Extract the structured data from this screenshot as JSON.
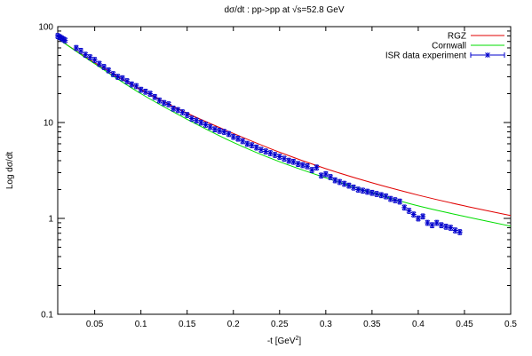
{
  "chart_data": {
    "type": "line",
    "title": "dσ/dt : pp->pp at √s=52.8 GeV",
    "xlabel": "-t [GeV",
    "xlabel_sup": "2",
    "xlabel_close": "]",
    "ylabel": "Log dσ/dt",
    "xlim": [
      0.01,
      0.5
    ],
    "ylim": [
      0.1,
      100
    ],
    "yscale": "log",
    "grid": false,
    "legend_position": "top-right",
    "x_ticks": [
      {
        "value": 0.05,
        "label": "0.05"
      },
      {
        "value": 0.1,
        "label": "0.1"
      },
      {
        "value": 0.15,
        "label": "0.15"
      },
      {
        "value": 0.2,
        "label": "0.2"
      },
      {
        "value": 0.25,
        "label": "0.25"
      },
      {
        "value": 0.3,
        "label": "0.3"
      },
      {
        "value": 0.35,
        "label": "0.35"
      },
      {
        "value": 0.4,
        "label": "0.4"
      },
      {
        "value": 0.45,
        "label": "0.45"
      },
      {
        "value": 0.5,
        "label": "0.5"
      }
    ],
    "y_ticks": [
      {
        "value": 0.1,
        "label": "0.1"
      },
      {
        "value": 1,
        "label": "1"
      },
      {
        "value": 10,
        "label": "10"
      },
      {
        "value": 100,
        "label": "100"
      }
    ],
    "series": [
      {
        "name": "RGZ",
        "style": "line",
        "color": "#e00000",
        "x": [
          0.01,
          0.05,
          0.1,
          0.15,
          0.2,
          0.25,
          0.3,
          0.35,
          0.4,
          0.45,
          0.5
        ],
        "y": [
          75,
          42,
          22,
          12.5,
          7.7,
          4.9,
          3.3,
          2.35,
          1.75,
          1.35,
          1.07
        ]
      },
      {
        "name": "Cornwall",
        "style": "line",
        "color": "#00dd00",
        "x": [
          0.01,
          0.05,
          0.1,
          0.15,
          0.2,
          0.25,
          0.3,
          0.35,
          0.4,
          0.45,
          0.5
        ],
        "y": [
          75,
          41,
          20,
          10.8,
          6.2,
          3.9,
          2.65,
          1.85,
          1.35,
          1.05,
          0.83
        ]
      },
      {
        "name": "ISR data experiment",
        "style": "points_errorbars",
        "color": "#0000cc",
        "error_fraction": 0.06,
        "x": [
          0.01,
          0.012,
          0.014,
          0.016,
          0.018,
          0.03,
          0.035,
          0.04,
          0.045,
          0.05,
          0.055,
          0.06,
          0.065,
          0.07,
          0.075,
          0.08,
          0.085,
          0.09,
          0.095,
          0.1,
          0.105,
          0.11,
          0.115,
          0.12,
          0.125,
          0.13,
          0.135,
          0.14,
          0.145,
          0.15,
          0.155,
          0.16,
          0.165,
          0.17,
          0.175,
          0.18,
          0.185,
          0.19,
          0.195,
          0.2,
          0.205,
          0.21,
          0.215,
          0.22,
          0.225,
          0.23,
          0.235,
          0.24,
          0.245,
          0.25,
          0.255,
          0.26,
          0.265,
          0.27,
          0.275,
          0.28,
          0.285,
          0.29,
          0.295,
          0.3,
          0.305,
          0.31,
          0.315,
          0.32,
          0.325,
          0.33,
          0.335,
          0.34,
          0.345,
          0.35,
          0.355,
          0.36,
          0.365,
          0.37,
          0.375,
          0.38,
          0.385,
          0.39,
          0.395,
          0.4,
          0.405,
          0.41,
          0.415,
          0.42,
          0.425,
          0.43,
          0.435,
          0.44,
          0.445
        ],
        "y": [
          80,
          78,
          76,
          74,
          72,
          60,
          56,
          51,
          48,
          45,
          41,
          38,
          35,
          32,
          30,
          29,
          27,
          25,
          24,
          22,
          21,
          20,
          18.5,
          17,
          16,
          15.5,
          14,
          13.5,
          12.8,
          12,
          11,
          10.5,
          10,
          9.5,
          9,
          8.5,
          8.2,
          8,
          7.6,
          7.1,
          6.8,
          6.4,
          6,
          5.8,
          5.5,
          5.2,
          5,
          4.8,
          4.6,
          4.4,
          4.2,
          4,
          3.9,
          3.7,
          3.6,
          3.5,
          3.2,
          3.4,
          2.8,
          2.9,
          2.7,
          2.5,
          2.4,
          2.3,
          2.2,
          2.1,
          2,
          1.95,
          1.9,
          1.85,
          1.8,
          1.75,
          1.7,
          1.6,
          1.55,
          1.5,
          1.3,
          1.2,
          1.1,
          1.0,
          1.05,
          0.9,
          0.85,
          0.9,
          0.85,
          0.82,
          0.8,
          0.75,
          0.72
        ]
      }
    ]
  }
}
